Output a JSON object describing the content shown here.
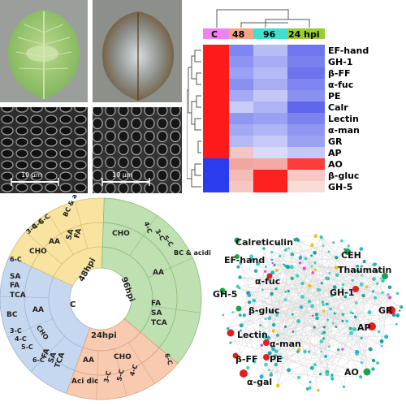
{
  "photos": {
    "scale_bar_left": "10 μm",
    "scale_bar_right": "10 μm"
  },
  "heatmap": {
    "columns": [
      {
        "label": "C",
        "color": "#ee82ee"
      },
      {
        "label": "48",
        "color": "#f4a582"
      },
      {
        "label": "96",
        "color": "#40e0d0"
      },
      {
        "label": "24 hpi",
        "color": "#9acd32"
      }
    ],
    "rows": [
      "EF-hand",
      "GH-1",
      "β-FF",
      "α-fuc",
      "PE",
      "Calr",
      "Lectin",
      "α-man",
      "GR",
      "AP",
      "AO",
      "β-gluc",
      "GH-5"
    ]
  },
  "sunburst": {
    "sectors": [
      {
        "name": "C",
        "ring1": [
          "C"
        ],
        "ring2": [
          "BC",
          "AA",
          "TCA",
          "FA",
          "SA"
        ],
        "ring3": [
          "3-C",
          "4-C",
          "5-C",
          "CHO",
          "6-C"
        ]
      },
      {
        "name": "48hpi",
        "ring1": [
          "48hpi"
        ],
        "ring2": [
          "CHO",
          "AA",
          "SA",
          "FA"
        ],
        "ring3": [
          "6-C",
          "3-C",
          "4-C",
          "5-C",
          "BC & acidic"
        ]
      },
      {
        "name": "96hpi",
        "ring1": [
          "96hpi"
        ],
        "ring2": [
          "CHO",
          "AA",
          "FA",
          "SA",
          "TCA"
        ],
        "ring3": [
          "4-C",
          "3-C",
          "5-C",
          "BC & acidic"
        ]
      },
      {
        "name": "24hpi",
        "ring1": [
          "24hpi"
        ],
        "ring2": [
          "CHO",
          "AA",
          "Aci dic",
          "TCA",
          "SA",
          "FA"
        ],
        "ring3": [
          "3-C",
          "5-C",
          "4-C",
          "6-C"
        ]
      }
    ]
  },
  "network": {
    "labels": [
      "Calreticulin",
      "EF-hand",
      "CEH",
      "Thaumatin",
      "α-fuc",
      "GH-1",
      "GH-5",
      "β-gluc",
      "GR",
      "AP",
      "Lectin",
      "α-man",
      "β-FF",
      "PE",
      "AO",
      "α-gal"
    ]
  }
}
